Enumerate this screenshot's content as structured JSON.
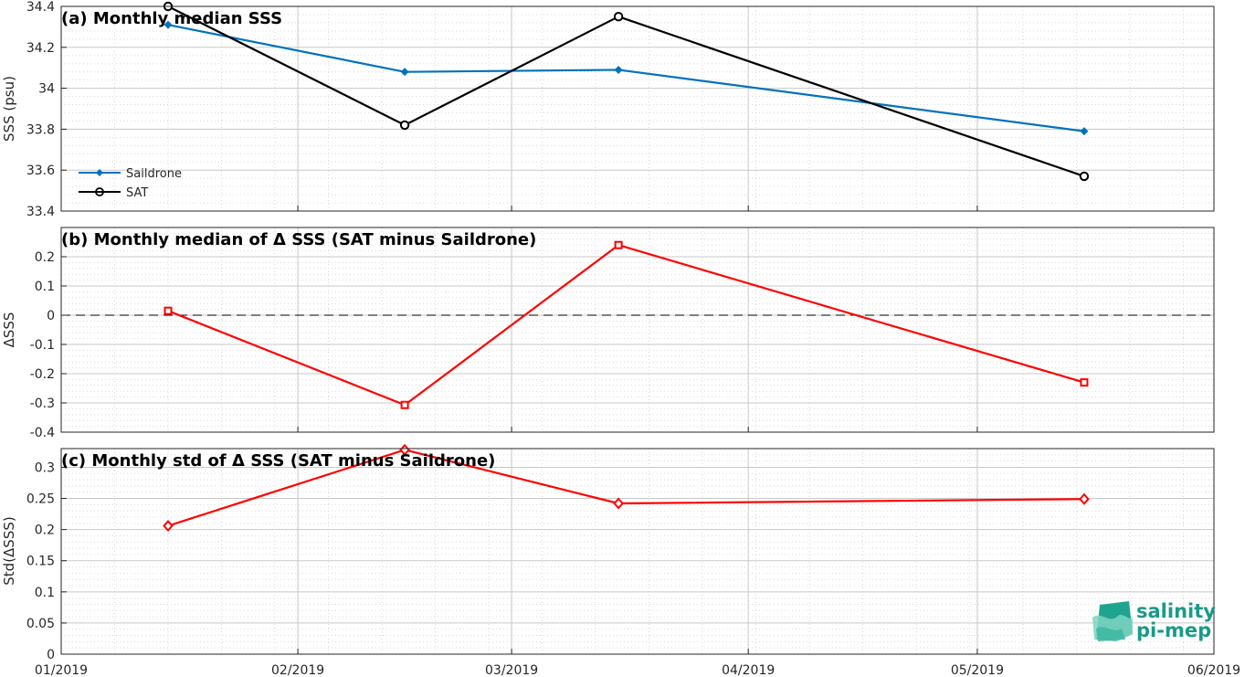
{
  "figure": {
    "x_axis": {
      "tick_labels": [
        "01/2019",
        "02/2019",
        "03/2019",
        "04/2019",
        "05/2019",
        "06/2019"
      ],
      "range_days": [
        0,
        151
      ]
    },
    "logo": {
      "line1": "salinity",
      "line2": "pi-mep"
    }
  },
  "colors": {
    "saildrone": "#0072BD",
    "sat": "#000000",
    "delta": "#FF0000",
    "grid": "#d9d9d9",
    "axis": "#262626"
  },
  "chart_data": [
    {
      "type": "line",
      "title": "(a) Monthly median SSS",
      "ylabel": "SSS (psu)",
      "ylim": [
        33.4,
        34.4
      ],
      "yticks": [
        "33.4",
        "33.6",
        "33.8",
        "34",
        "34.2",
        "34.4"
      ],
      "x": [
        "2019-01-15",
        "2019-02-15",
        "2019-03-15",
        "2019-05-15"
      ],
      "grid": true,
      "legend_position": "lower-left",
      "series": [
        {
          "name": "Saildrone",
          "marker": "diamond-filled",
          "color": "#0072BD",
          "values": [
            34.31,
            34.08,
            34.09,
            33.79
          ]
        },
        {
          "name": "SAT",
          "marker": "circle-open",
          "color": "#000000",
          "values": [
            34.4,
            33.82,
            34.35,
            33.57
          ]
        }
      ]
    },
    {
      "type": "line",
      "title": "(b) Monthly median of Δ SSS (SAT minus Saildrone)",
      "ylabel": "ΔSSS",
      "ylim": [
        -0.4,
        0.3
      ],
      "yticks": [
        "-0.4",
        "-0.3",
        "-0.2",
        "-0.1",
        "0",
        "0.1",
        "0.2"
      ],
      "x": [
        "2019-01-15",
        "2019-02-15",
        "2019-03-15",
        "2019-05-15"
      ],
      "grid": true,
      "zero_line": "dashed",
      "series": [
        {
          "marker": "square-open",
          "color": "#FF0000",
          "values": [
            0.015,
            -0.307,
            0.24,
            -0.23
          ]
        }
      ]
    },
    {
      "type": "line",
      "title": "(c) Monthly std of Δ SSS (SAT minus Saildrone)",
      "ylabel": "Std(ΔSSS)",
      "ylim": [
        0,
        0.33
      ],
      "yticks": [
        "0",
        "0.05",
        "0.1",
        "0.15",
        "0.2",
        "0.25",
        "0.3"
      ],
      "x": [
        "2019-01-15",
        "2019-02-15",
        "2019-03-15",
        "2019-05-15"
      ],
      "grid": true,
      "series": [
        {
          "marker": "diamond-open",
          "color": "#FF0000",
          "values": [
            0.206,
            0.328,
            0.242,
            0.249
          ]
        }
      ]
    }
  ]
}
